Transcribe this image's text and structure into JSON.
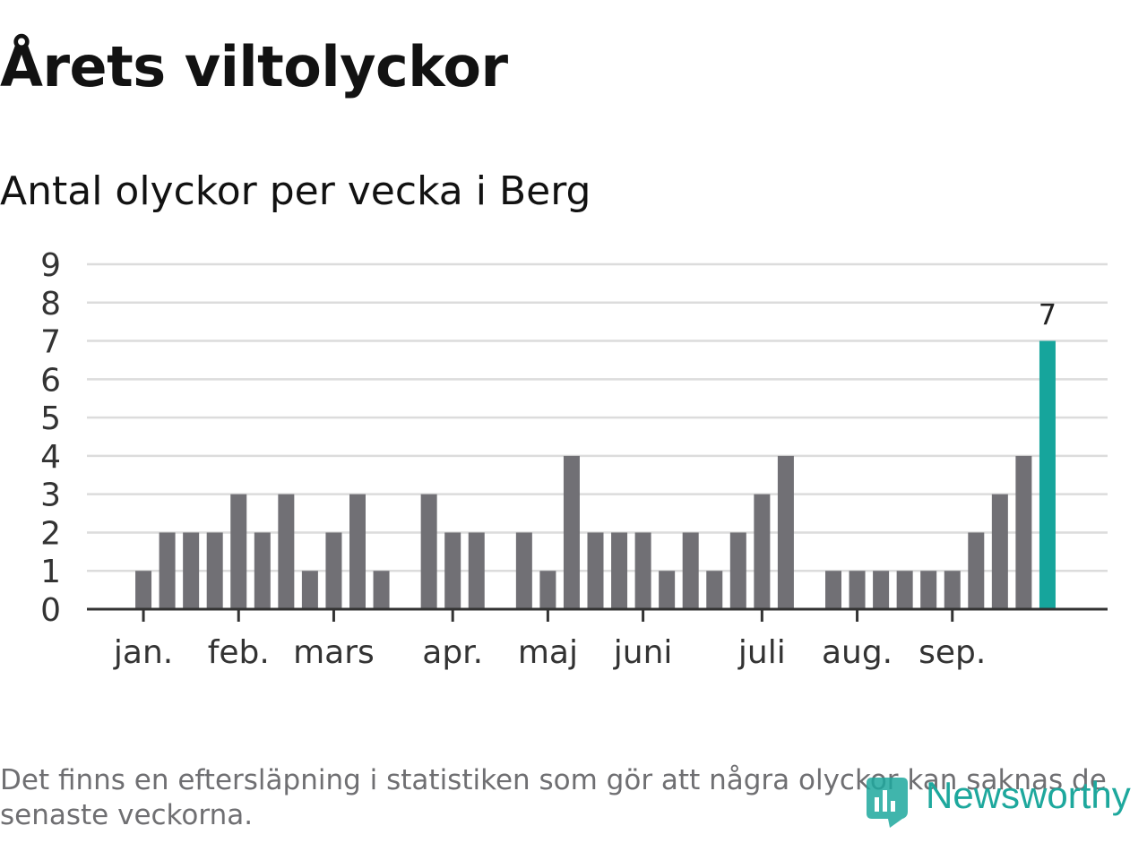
{
  "header": {
    "title": "Årets viltolyckor"
  },
  "chart_data": {
    "type": "bar",
    "title": "Årets viltolyckor",
    "subtitle": "Antal olyckor per vecka i Berg",
    "xlabel": "",
    "ylabel": "",
    "ylim": [
      0,
      9
    ],
    "yticks": [
      "0",
      "1",
      "2",
      "3",
      "4",
      "5",
      "6",
      "7",
      "8",
      "9"
    ],
    "grid": true,
    "bar_color": "#717075",
    "highlight_color": "#16a59c",
    "values": [
      null,
      1,
      2,
      2,
      2,
      3,
      2,
      3,
      1,
      2,
      3,
      1,
      null,
      3,
      2,
      2,
      null,
      2,
      1,
      4,
      2,
      2,
      2,
      1,
      2,
      1,
      2,
      3,
      4,
      null,
      1,
      1,
      1,
      1,
      1,
      1,
      2,
      3,
      4,
      7
    ],
    "highlight_index": 39,
    "highlight_label": "7",
    "month_ticks": [
      {
        "label": "jan.",
        "week": 1
      },
      {
        "label": "feb.",
        "week": 5
      },
      {
        "label": "mars",
        "week": 9
      },
      {
        "label": "apr.",
        "week": 14
      },
      {
        "label": "maj",
        "week": 18
      },
      {
        "label": "juni",
        "week": 22
      },
      {
        "label": "juli",
        "week": 27
      },
      {
        "label": "aug.",
        "week": 31
      },
      {
        "label": "sep.",
        "week": 35
      }
    ]
  },
  "footer": {
    "note": "Det finns en eftersläpning i statistiken som gör att några olyckor kan saknas de senaste veckorna.",
    "logo_text": "Newsworthy",
    "logo_color": "#1ea89d"
  }
}
